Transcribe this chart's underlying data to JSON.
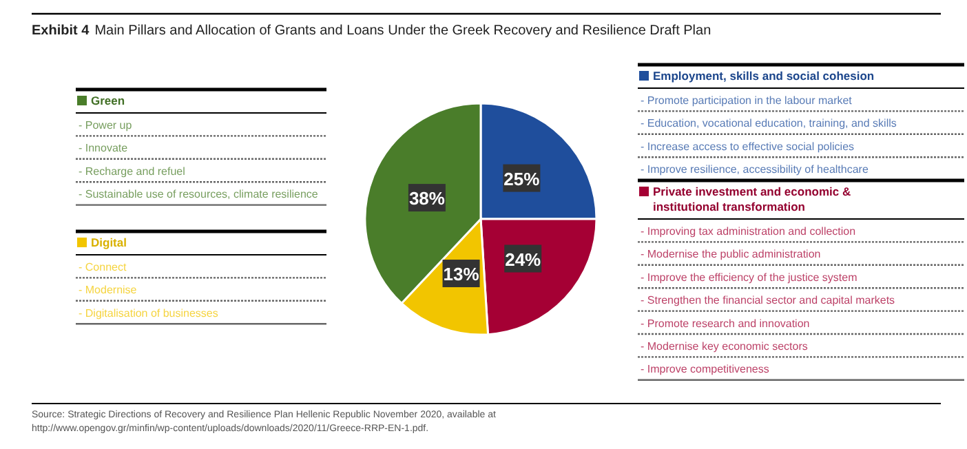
{
  "chart_data": {
    "type": "pie",
    "title": "Exhibit 4 Main Pillars and Allocation of Grants and Loans Under the Greek Recovery and Resilience Draft Plan",
    "categories": [
      "Employment, skills and social cohesion",
      "Private investment and economic & institutional transformation",
      "Digital",
      "Green"
    ],
    "values": [
      25,
      24,
      13,
      38
    ],
    "colors": [
      "#1f4e9c",
      "#a50034",
      "#f2c500",
      "#4a7d2a"
    ],
    "legend": "right",
    "value_labels": [
      "25%",
      "24%",
      "13%",
      "38%"
    ],
    "annotations": [
      {
        "text": "- Promote participation in the labour market",
        "x": "Employment, skills and social cohesion"
      },
      {
        "text": "- Education, vocational education, training, and skills",
        "x": "Employment, skills and social cohesion"
      },
      {
        "text": "- Increase access to effective social policies",
        "x": "Employment, skills and social cohesion"
      },
      {
        "text": "- Improve resilience, accessibility of healthcare",
        "x": "Employment, skills and social cohesion"
      },
      {
        "text": "- Improving tax administration and collection",
        "x": "Private investment and economic & institutional transformation"
      },
      {
        "text": "- Modernise the public administration",
        "x": "Private investment and economic & institutional transformation"
      },
      {
        "text": "- Improve the efficiency of the justice system",
        "x": "Private investment and economic & institutional transformation"
      },
      {
        "text": "- Strengthen the financial sector and capital markets",
        "x": "Private investment and economic & institutional transformation"
      },
      {
        "text": "- Promote research and innovation",
        "x": "Private investment and economic & institutional transformation"
      },
      {
        "text": "- Modernise key economic sectors",
        "x": "Private investment and economic & institutional transformation"
      },
      {
        "text": "- Improve competitiveness",
        "x": "Private investment and economic & institutional transformation"
      },
      {
        "text": "- Connect",
        "x": "Digital"
      },
      {
        "text": "- Modernise",
        "x": "Digital"
      },
      {
        "text": "- Digitalisation of businesses",
        "x": "Digital"
      },
      {
        "text": "- Power up",
        "x": "Green"
      },
      {
        "text": "- Innovate",
        "x": "Green"
      },
      {
        "text": "- Recharge and refuel",
        "x": "Green"
      },
      {
        "text": "- Sustainable use of resources, climate resilience",
        "x": "Green"
      },
      "Source: Strategic Directions of Recovery and Resilience Plan Hellenic Republic November 2020, available at http://www.opengov.gr/minfin/wp-content/uploads/downloads/2020/11/Greece-RRP-EN-1.pdf."
    ]
  }
}
